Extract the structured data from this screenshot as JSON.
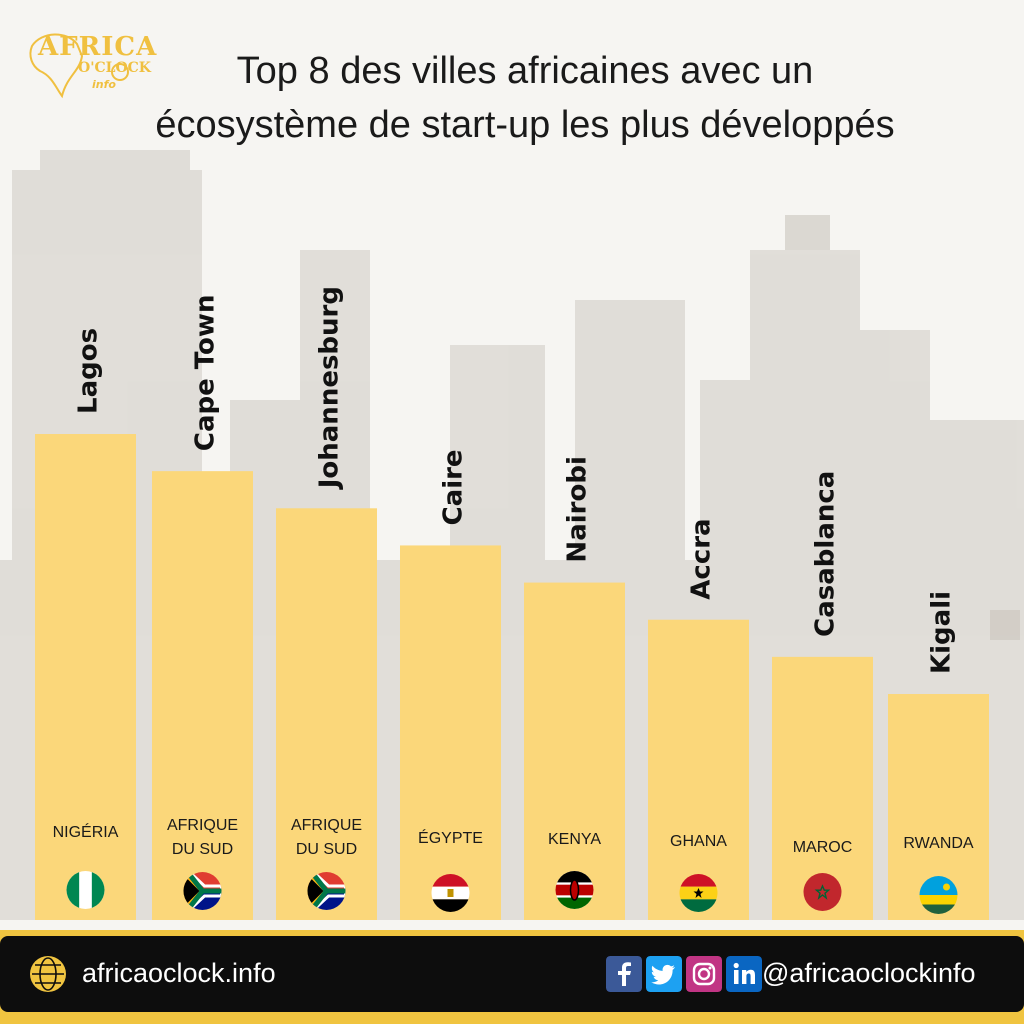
{
  "title_line1": "Top 8 des villes africaines avec un",
  "title_line2": "écosystème de start-up les plus développés",
  "logo": {
    "word": "AFRICA",
    "oclock": "O'CLOCK",
    "info": "info"
  },
  "colors": {
    "bar": "#fbd77a",
    "accent": "#f0c440",
    "footer": "#0d0d0d"
  },
  "chart_data": {
    "type": "bar",
    "title": "Top 8 des villes africaines avec un écosystème de start-up les plus développés",
    "categories": [
      "Lagos",
      "Cape Town",
      "Johannesburg",
      "Caire",
      "Nairobi",
      "Accra",
      "Casablanca",
      "Kigali"
    ],
    "countries": [
      "NIGÉRIA",
      "AFRIQUE DU SUD",
      "AFRIQUE DU SUD",
      "ÉGYPTE",
      "KENYA",
      "GHANA",
      "MAROC",
      "RWANDA"
    ],
    "flags": [
      "nigeria-flag",
      "south-africa-flag",
      "south-africa-flag",
      "egypt-flag",
      "kenya-flag",
      "ghana-flag",
      "morocco-flag",
      "rwanda-flag"
    ],
    "values": [
      8,
      7,
      6,
      5,
      4,
      3,
      2,
      1
    ],
    "rank_note": "Bar heights show ranking only; no numeric values are printed"
  },
  "footer": {
    "website": "africaoclock.info",
    "handle": "@africaoclockinfo",
    "social_icons": [
      "facebook-icon",
      "twitter-icon",
      "instagram-icon",
      "linkedin-icon"
    ]
  }
}
